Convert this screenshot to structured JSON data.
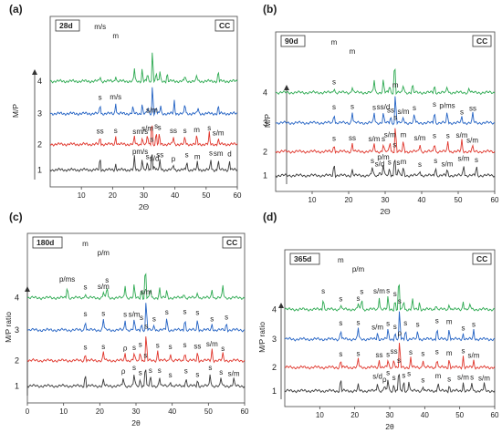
{
  "chart_data": [
    {
      "type": "line",
      "panel_label": "(a)",
      "age_tag": "28d",
      "binder_tag": "CC",
      "xlabel": "2Θ",
      "ylabel": "M/P",
      "xlim": [
        0,
        60
      ],
      "x_ticks": [
        10,
        20,
        30,
        40,
        50,
        60
      ],
      "series": [
        {
          "label": "1",
          "color": "#3a3a3a",
          "peaks": [
            16,
            21,
            27,
            29.5,
            31.2,
            32.6,
            33.4,
            35.2,
            39.5,
            43.8,
            47.2,
            51.5,
            53.9,
            57.5
          ]
        },
        {
          "label": "2",
          "color": "#e0352b",
          "peaks": [
            16,
            21,
            27,
            29.5,
            31.2,
            32.6,
            34,
            35,
            39.5,
            43.2,
            47,
            51,
            53.9
          ]
        },
        {
          "label": "3",
          "color": "#2463c4",
          "peaks": [
            16,
            21,
            26.5,
            29.5,
            31.3,
            32.8,
            34,
            35.4,
            39.8,
            43.2,
            47.4,
            53.9
          ]
        },
        {
          "label": "4",
          "color": "#2eaa52",
          "peaks": [
            16,
            21,
            27,
            29.5,
            31.2,
            32.8,
            34,
            35.2,
            37.5,
            43.2,
            47,
            53.9
          ]
        }
      ],
      "annotations": [
        "m/s",
        "m",
        "p",
        "m/s",
        "s",
        "s",
        "s/d",
        "ss",
        "p",
        "s",
        "m",
        "s",
        "sm",
        "d",
        "ss",
        "s",
        "s",
        "m/s",
        "s/m",
        "s/m",
        "s",
        "s",
        "ss",
        "s",
        "m",
        "s",
        "s/m",
        "s",
        "m/s"
      ]
    },
    {
      "type": "line",
      "panel_label": "(b)",
      "age_tag": "90d",
      "binder_tag": "CC",
      "xlabel": "2Θ",
      "ylabel": "M/P",
      "xlim": [
        0,
        60
      ],
      "x_ticks": [
        10,
        20,
        30,
        40,
        50,
        60
      ],
      "series": [
        {
          "label": "1",
          "color": "#3a3a3a",
          "peaks": [
            16,
            21,
            26.5,
            28.5,
            29.5,
            31.2,
            32.6,
            33.6,
            35,
            39.5,
            43.8,
            47,
            51.5,
            55
          ]
        },
        {
          "label": "2",
          "color": "#e0352b",
          "peaks": [
            16,
            21,
            27,
            29.5,
            31.3,
            32.8,
            35,
            39.5,
            43.5,
            47.2,
            51,
            53.9
          ]
        },
        {
          "label": "3",
          "color": "#2463c4",
          "peaks": [
            16,
            21,
            27,
            29.5,
            31.5,
            32.8,
            35,
            38,
            43.5,
            47,
            51,
            54
          ]
        },
        {
          "label": "4",
          "color": "#2eaa52",
          "peaks": [
            16,
            21,
            27,
            29.5,
            31.2,
            32.6,
            35,
            37.5,
            43.5,
            47,
            53
          ]
        }
      ],
      "annotations": [
        "m",
        "m",
        "s",
        "s/d",
        "p/m",
        "s",
        "s",
        "s",
        "m",
        "s",
        "s",
        "s/m",
        "s/m",
        "s",
        "s",
        "ss",
        "s/m",
        "s",
        "s/m",
        "s",
        "m",
        "s/m",
        "s",
        "s",
        "s/m",
        "s/m",
        "s",
        "s",
        "s",
        "ss/d",
        "ss",
        "m",
        "s/m",
        "s",
        "s",
        "p/ms",
        "s",
        "ss",
        "s"
      ]
    },
    {
      "type": "line",
      "panel_label": "(c)",
      "age_tag": "180d",
      "binder_tag": "CC",
      "xlabel": "2θ",
      "ylabel": "M/P ratio",
      "xlim": [
        0,
        60
      ],
      "x_ticks": [
        0,
        10,
        20,
        30,
        40,
        50,
        60
      ],
      "series": [
        {
          "label": "1",
          "color": "#3a3a3a",
          "peaks": [
            16,
            21,
            26.5,
            29.5,
            31.2,
            32.6,
            34,
            36.5,
            39.5,
            43.8,
            47,
            50.5,
            53.5,
            57
          ]
        },
        {
          "label": "2",
          "color": "#e0352b",
          "peaks": [
            16,
            21,
            27,
            29.5,
            31.2,
            32.8,
            36,
            39.5,
            43.5,
            47,
            51,
            54
          ]
        },
        {
          "label": "3",
          "color": "#2463c4",
          "peaks": [
            16,
            21,
            27,
            29.5,
            31.5,
            32.8,
            35,
            38.5,
            43.5,
            47,
            51,
            55
          ]
        },
        {
          "label": "4",
          "color": "#2eaa52",
          "peaks": [
            11,
            16,
            21,
            22,
            27,
            29.5,
            31.5,
            32.6,
            34,
            36.5,
            38.5,
            43.2,
            47,
            51,
            54
          ]
        }
      ],
      "annotations": [
        "m",
        "p/m",
        "ρ",
        "s",
        "s",
        "s",
        "s",
        "s",
        "s",
        "s",
        "s",
        "s",
        "s",
        "s/m",
        "s",
        "s",
        "ρ",
        "s",
        "s",
        "s",
        "s",
        "s",
        "s",
        "ss",
        "s/m",
        "s",
        "s",
        "s",
        "s",
        "s/m",
        "s",
        "s/m",
        "s",
        "s",
        "s",
        "s",
        "s",
        "s",
        "p/ms",
        "s",
        "s/m",
        "s"
      ]
    },
    {
      "type": "line",
      "panel_label": "(d)",
      "age_tag": "365d",
      "binder_tag": "CC",
      "xlabel": "2θ",
      "ylabel": "M/P ratio",
      "xlim": [
        0,
        60
      ],
      "x_ticks": [
        10,
        20,
        30,
        40,
        50,
        60
      ],
      "series": [
        {
          "label": "1",
          "color": "#3a3a3a",
          "peaks": [
            16,
            21,
            26.5,
            28.5,
            29.5,
            31.2,
            32.6,
            34,
            35.5,
            39.5,
            43.8,
            47,
            51,
            53.5,
            57
          ]
        },
        {
          "label": "2",
          "color": "#e0352b",
          "peaks": [
            16,
            21,
            27,
            29.5,
            31.2,
            32.8,
            36,
            39.5,
            43.5,
            47,
            51,
            54
          ]
        },
        {
          "label": "3",
          "color": "#2463c4",
          "peaks": [
            16,
            21,
            26.5,
            29.5,
            31.5,
            32.8,
            34.5,
            38,
            43.5,
            47,
            51,
            54
          ]
        },
        {
          "label": "4",
          "color": "#2eaa52",
          "peaks": [
            11,
            16,
            21,
            22,
            27,
            29.5,
            31.5,
            32.6,
            34,
            36.5,
            38.5,
            43.2,
            47,
            51,
            53
          ]
        }
      ],
      "annotations": [
        "m",
        "p/m",
        "s/d",
        "ρ",
        "s",
        "s",
        "s",
        "s",
        "s",
        "s",
        "m",
        "s",
        "s/m",
        "s",
        "s/m",
        "s",
        "s",
        "ss",
        "s",
        "ss",
        "ρ",
        "s",
        "s",
        "s",
        "m",
        "s",
        "s/m",
        "s",
        "s",
        "s/m",
        "s",
        "s",
        "s",
        "s",
        "s",
        "s",
        "m",
        "s",
        "s",
        "s",
        "s",
        "s",
        "s",
        "s/m",
        "s",
        "s"
      ]
    }
  ]
}
